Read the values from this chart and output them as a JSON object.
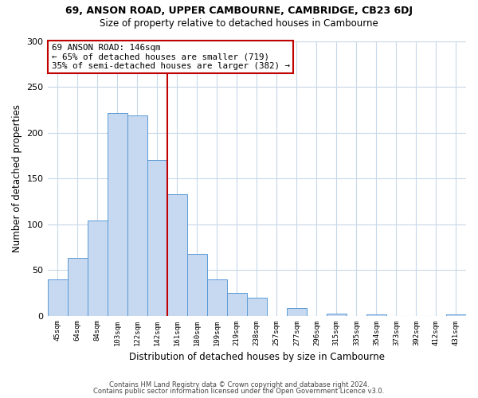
{
  "title": "69, ANSON ROAD, UPPER CAMBOURNE, CAMBRIDGE, CB23 6DJ",
  "subtitle": "Size of property relative to detached houses in Cambourne",
  "xlabel": "Distribution of detached houses by size in Cambourne",
  "ylabel": "Number of detached properties",
  "bar_labels": [
    "45sqm",
    "64sqm",
    "84sqm",
    "103sqm",
    "122sqm",
    "142sqm",
    "161sqm",
    "180sqm",
    "199sqm",
    "219sqm",
    "238sqm",
    "257sqm",
    "277sqm",
    "296sqm",
    "315sqm",
    "335sqm",
    "354sqm",
    "373sqm",
    "392sqm",
    "412sqm",
    "431sqm"
  ],
  "bar_values": [
    40,
    63,
    104,
    221,
    219,
    170,
    133,
    67,
    40,
    25,
    20,
    0,
    8,
    0,
    2,
    0,
    1,
    0,
    0,
    0,
    1
  ],
  "bar_color": "#c6d9f0",
  "bar_edge_color": "#5b9bd5",
  "ref_line_index": 5,
  "ref_line_color": "#c00000",
  "annotation_title": "69 ANSON ROAD: 146sqm",
  "annotation_line1": "← 65% of detached houses are smaller (719)",
  "annotation_line2": "35% of semi-detached houses are larger (382) →",
  "annotation_box_color": "#c00000",
  "ylim": [
    0,
    300
  ],
  "yticks": [
    0,
    50,
    100,
    150,
    200,
    250,
    300
  ],
  "footer1": "Contains HM Land Registry data © Crown copyright and database right 2024.",
  "footer2": "Contains public sector information licensed under the Open Government Licence v3.0.",
  "background_color": "#ffffff",
  "grid_color": "#c8d8e8"
}
